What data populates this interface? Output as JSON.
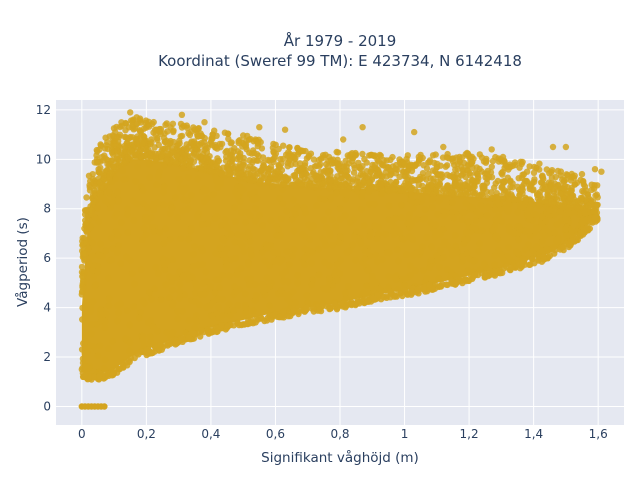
{
  "chart_data": {
    "type": "scatter",
    "title": "År 1979 - 2019",
    "subtitle": "Koordinat (Sweref 99 TM): E 423734, N 6142418",
    "xlabel": "Signifikant våghöjd (m)",
    "ylabel": "Vågperiod (s)",
    "xlim": [
      -0.08,
      1.68
    ],
    "ylim": [
      -0.75,
      12.4
    ],
    "x_ticks": [
      0,
      0.2,
      0.4,
      0.6,
      0.8,
      1,
      1.2,
      1.4,
      1.6
    ],
    "x_tick_labels": [
      "0",
      "0,2",
      "0,4",
      "0,6",
      "0,8",
      "1",
      "1,2",
      "1,4",
      "1,6"
    ],
    "y_ticks": [
      0,
      2,
      4,
      6,
      8,
      10,
      12
    ],
    "y_tick_labels": [
      "0",
      "2",
      "4",
      "6",
      "8",
      "10",
      "12"
    ],
    "grid": true,
    "legend": "none",
    "marker_color": "#d4a41f",
    "plot_background": "#e5e8f1",
    "envelope": {
      "x": [
        0.0,
        0.02,
        0.05,
        0.1,
        0.15,
        0.2,
        0.3,
        0.4,
        0.5,
        0.6,
        0.7,
        0.8,
        0.9,
        1.0,
        1.1,
        1.2,
        1.3,
        1.4,
        1.45,
        1.5,
        1.55,
        1.6
      ],
      "y_min": [
        1.4,
        1.3,
        1.3,
        1.5,
        2.0,
        2.3,
        2.8,
        3.2,
        3.5,
        3.8,
        4.0,
        4.2,
        4.5,
        4.7,
        5.0,
        5.3,
        5.6,
        6.0,
        6.2,
        6.6,
        7.1,
        7.8
      ],
      "y_max": [
        6.5,
        9.5,
        10.5,
        11.3,
        11.8,
        11.6,
        11.5,
        11.2,
        11.0,
        10.6,
        10.4,
        10.3,
        10.2,
        10.2,
        10.2,
        10.3,
        10.1,
        10.0,
        9.6,
        9.5,
        9.3,
        9.0
      ],
      "core_max": [
        4.0,
        7.5,
        8.5,
        9.5,
        10.0,
        10.0,
        9.8,
        9.5,
        9.2,
        9.0,
        8.9,
        8.8,
        8.8,
        8.7,
        8.6,
        8.5,
        8.4,
        8.3,
        8.2,
        8.1,
        8.0,
        8.0
      ]
    },
    "zero_period_points": {
      "x": [
        0.0,
        0.01,
        0.02,
        0.03,
        0.04,
        0.05,
        0.06,
        0.07
      ],
      "y": [
        0,
        0,
        0,
        0,
        0,
        0,
        0,
        0
      ]
    },
    "outliers": [
      {
        "x": 0.15,
        "y": 11.9
      },
      {
        "x": 0.31,
        "y": 11.8
      },
      {
        "x": 0.17,
        "y": 11.7
      },
      {
        "x": 0.38,
        "y": 11.5
      },
      {
        "x": 0.55,
        "y": 11.3
      },
      {
        "x": 0.63,
        "y": 11.2
      },
      {
        "x": 0.87,
        "y": 11.3
      },
      {
        "x": 1.03,
        "y": 11.1
      },
      {
        "x": 1.27,
        "y": 10.4
      },
      {
        "x": 1.46,
        "y": 10.5
      },
      {
        "x": 1.5,
        "y": 10.5
      },
      {
        "x": 1.43,
        "y": 9.2
      },
      {
        "x": 1.59,
        "y": 9.6
      },
      {
        "x": 1.61,
        "y": 9.5
      },
      {
        "x": 0.81,
        "y": 10.8
      },
      {
        "x": 1.12,
        "y": 10.5
      },
      {
        "x": 1.36,
        "y": 9.9
      },
      {
        "x": 1.55,
        "y": 9.4
      },
      {
        "x": 0.0,
        "y": 1.5
      },
      {
        "x": 0.02,
        "y": 6.4
      },
      {
        "x": 0.03,
        "y": 7.8
      },
      {
        "x": 0.05,
        "y": 9.9
      }
    ]
  }
}
